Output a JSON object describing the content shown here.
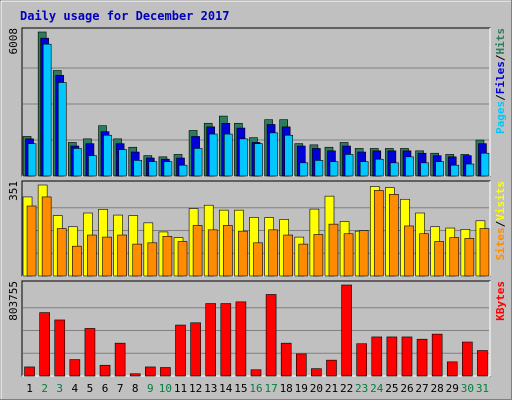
{
  "colors": {
    "background": "#c0c0c0",
    "hits": "#2b7d5b",
    "files": "#0000d8",
    "pages": "#00c8ff",
    "visits": "#ffff00",
    "sites": "#ff8c00",
    "kbytes": "#ff0000",
    "title": "#0000c0",
    "weekend_day": "#008040"
  },
  "chart_data": {
    "type": "bar",
    "title": "Daily usage for December 2017",
    "categories": [
      "1",
      "2",
      "3",
      "4",
      "5",
      "6",
      "7",
      "8",
      "9",
      "10",
      "11",
      "12",
      "13",
      "14",
      "15",
      "16",
      "17",
      "18",
      "19",
      "20",
      "21",
      "22",
      "23",
      "24",
      "25",
      "26",
      "27",
      "28",
      "29",
      "30",
      "31"
    ],
    "weekend_days": [
      "2",
      "3",
      "9",
      "10",
      "16",
      "17",
      "23",
      "24",
      "30",
      "31"
    ],
    "panels": [
      {
        "name": "hits-files-pages",
        "ymax": 6008,
        "ytick_label": "6008",
        "legend": [
          {
            "label": "Hits",
            "color": "#2b7d5b"
          },
          {
            "label": "/",
            "color": "#000000"
          },
          {
            "label": "Files",
            "color": "#0000d8"
          },
          {
            "label": "/",
            "color": "#000000"
          },
          {
            "label": "Pages",
            "color": "#00c8ff"
          }
        ],
        "series": [
          {
            "name": "Hits",
            "values": [
              1650,
              6008,
              4400,
              1400,
              1550,
              2100,
              1550,
              1200,
              850,
              800,
              900,
              1900,
              2200,
              2500,
              2200,
              1600,
              2350,
              2350,
              1350,
              1300,
              1200,
              1400,
              1150,
              1150,
              1150,
              1150,
              1050,
              950,
              900,
              900,
              1500
            ]
          },
          {
            "name": "Files",
            "values": [
              1550,
              5750,
              4200,
              1250,
              1350,
              1850,
              1350,
              1000,
              750,
              700,
              750,
              1650,
              2050,
              2200,
              2000,
              1400,
              2150,
              2050,
              1250,
              1150,
              1050,
              1250,
              1000,
              1050,
              1050,
              1050,
              950,
              850,
              800,
              850,
              1350
            ]
          },
          {
            "name": "Pages",
            "values": [
              1350,
              5500,
              3900,
              1150,
              850,
              1700,
              1100,
              650,
              600,
              600,
              450,
              1150,
              1750,
              1750,
              1550,
              1350,
              1800,
              1700,
              550,
              650,
              600,
              900,
              600,
              700,
              550,
              800,
              550,
              600,
              450,
              500,
              950
            ]
          }
        ]
      },
      {
        "name": "visits-sites",
        "ymax": 351,
        "ytick_label": "351",
        "legend": [
          {
            "label": "Visits",
            "color": "#ffff00"
          },
          {
            "label": "/",
            "color": "#000000"
          },
          {
            "label": "Sites",
            "color": "#ff8c00"
          }
        ],
        "series": [
          {
            "name": "Visits",
            "values": [
              305,
              351,
              233,
              190,
              243,
              257,
              235,
              233,
              205,
              170,
              148,
              260,
              273,
              254,
              254,
              226,
              225,
              218,
              150,
              258,
              308,
              210,
              173,
              345,
              341,
              296,
              243,
              190,
              185,
              180,
              213
            ]
          },
          {
            "name": "Sites",
            "values": [
              270,
              305,
              183,
              115,
              158,
              150,
              158,
              123,
              128,
              153,
              133,
              195,
              178,
              195,
              173,
              128,
              178,
              158,
              123,
              160,
              200,
              163,
              175,
              330,
              315,
              193,
              163,
              133,
              148,
              145,
              183
            ]
          }
        ]
      },
      {
        "name": "kbytes",
        "ymax": 803755,
        "ytick_label": "803755",
        "legend": [
          {
            "label": "KBytes",
            "color": "#ff0000"
          }
        ],
        "series": [
          {
            "name": "KBytes",
            "values": [
              80000,
              560000,
              495000,
              145000,
              420000,
              95000,
              290000,
              20000,
              80000,
              75000,
              450000,
              470000,
              640000,
              640000,
              655000,
              55000,
              720000,
              290000,
              195000,
              65000,
              140000,
              803755,
              285000,
              345000,
              345000,
              345000,
              325000,
              370000,
              125000,
              300000,
              225000
            ]
          }
        ]
      }
    ]
  }
}
